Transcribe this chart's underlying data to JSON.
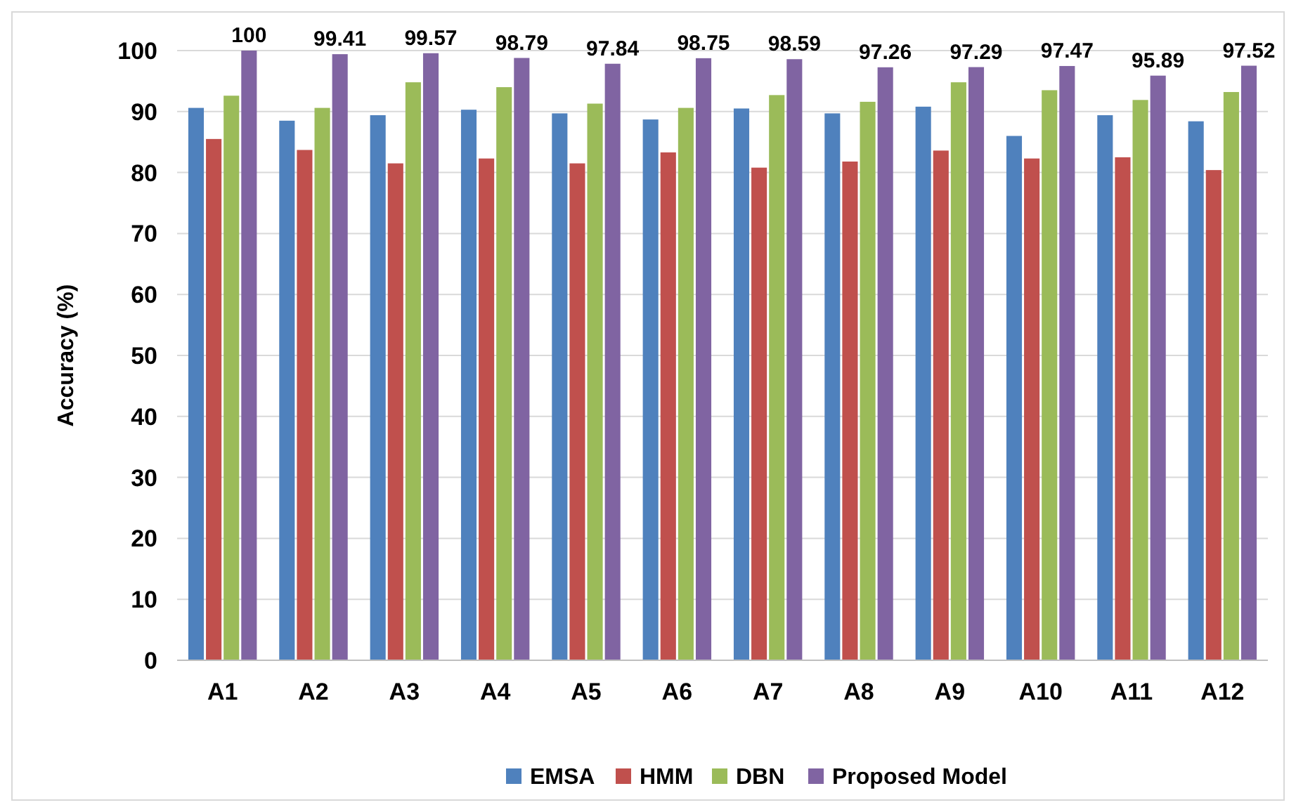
{
  "chart_data": {
    "type": "bar",
    "ylabel": "Accuracy (%)",
    "categories": [
      "A1",
      "A2",
      "A3",
      "A4",
      "A5",
      "A6",
      "A7",
      "A8",
      "A9",
      "A10",
      "A11",
      "A12"
    ],
    "series": [
      {
        "name": "EMSA",
        "color": "#4f81bd",
        "values": [
          90.6,
          88.5,
          89.4,
          90.3,
          89.7,
          88.7,
          90.5,
          89.7,
          90.8,
          86,
          89.4,
          88.4
        ]
      },
      {
        "name": "HMM",
        "color": "#c0504d",
        "values": [
          85.5,
          83.7,
          81.5,
          82.3,
          81.5,
          83.3,
          80.8,
          81.8,
          83.6,
          82.3,
          82.5,
          80.4
        ]
      },
      {
        "name": "DBN",
        "color": "#9bbb59",
        "values": [
          92.6,
          90.6,
          94.8,
          94,
          91.3,
          90.6,
          92.7,
          91.6,
          94.8,
          93.5,
          91.9,
          93.2
        ]
      },
      {
        "name": "Proposed Model",
        "color": "#8064a2",
        "values": [
          100,
          99.41,
          99.57,
          98.79,
          97.84,
          98.75,
          98.59,
          97.26,
          97.29,
          97.47,
          95.89,
          97.52
        ],
        "value_labels": [
          "100",
          "99.41",
          "99.57",
          "98.79",
          "97.84",
          "98.75",
          "98.59",
          "97.26",
          "97.29",
          "97.47",
          "95.89",
          "97.52"
        ]
      }
    ],
    "ylim": [
      0,
      100
    ],
    "yticks": [
      0,
      10,
      20,
      30,
      40,
      50,
      60,
      70,
      80,
      90,
      100
    ],
    "grid": "y",
    "legend": "bottom"
  }
}
